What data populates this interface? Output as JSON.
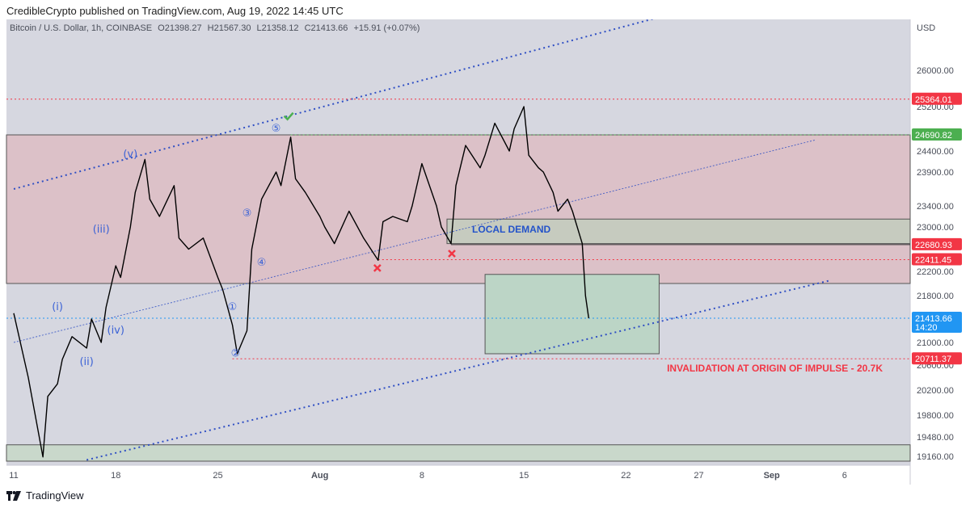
{
  "header": {
    "published": "CredibleCrypto published on TradingView.com, Aug 19, 2022 14:45 UTC"
  },
  "symbol": {
    "name": "Bitcoin / U.S. Dollar, 1h, COINBASE",
    "open": "O21398.27",
    "high": "H21567.30",
    "low": "L21358.12",
    "close": "C21413.66",
    "change": "+15.91 (+0.07%)"
  },
  "footer": {
    "brand": "TradingView"
  },
  "colors": {
    "pane": "#d6d7e0",
    "supply_zone": "#dcc1c8",
    "demand_zone": "#c6cbbf",
    "target_box": "#bcd5c6",
    "price_line": "#000000",
    "channel": "#2f4fc4",
    "red_level": "#f23645",
    "green_level": "#4caf50",
    "last_price": "#2196f3",
    "wave_label": "#3c63d6"
  },
  "chart_data": {
    "type": "line",
    "currency": "USD",
    "x_ticks": [
      "11",
      "18",
      "25",
      "Aug",
      "8",
      "15",
      "22",
      "27",
      "Sep",
      "6"
    ],
    "y_ticks": [
      26000,
      25200,
      24400,
      23900,
      23400,
      23000,
      22200,
      21800,
      21000,
      20600,
      20200,
      19800,
      19480,
      19160
    ],
    "y_range": [
      19100,
      26700
    ],
    "price_labels": [
      {
        "value": 25364.01,
        "text": "25364.01",
        "color": "red"
      },
      {
        "value": 24690.82,
        "text": "24690.82",
        "color": "green"
      },
      {
        "value": 22680.93,
        "text": "22680.93",
        "color": "red"
      },
      {
        "value": 22411.45,
        "text": "22411.45",
        "color": "red"
      },
      {
        "value": 21413.66,
        "text": "21413.66",
        "color": "blue",
        "sub": "14:20"
      },
      {
        "value": 20711.37,
        "text": "20711.37",
        "color": "red"
      }
    ],
    "annotations": {
      "local_demand": "LOCAL DEMAND",
      "invalidation": "INVALIDATION AT ORIGIN OF IMPULSE - 20.7K"
    },
    "wave_labels": [
      "(i)",
      "(ii)",
      "(iii)",
      "(iv)",
      "(v)",
      "①",
      "②",
      "③",
      "④",
      "⑤"
    ],
    "series": [
      {
        "values": [
          [
            "Jul 11",
            21500
          ],
          [
            "Jul 12",
            20400
          ],
          [
            "Jul 13",
            19150
          ],
          [
            "Jul 13",
            20100
          ],
          [
            "Jul 14",
            20300
          ],
          [
            "Jul 14",
            20700
          ],
          [
            "Jul 15",
            21100
          ],
          [
            "Jul 16",
            20900
          ],
          [
            "Jul 16",
            21400
          ],
          [
            "Jul 17",
            21000
          ],
          [
            "Jul 17",
            21600
          ],
          [
            "Jul 18",
            22300
          ],
          [
            "Jul 18",
            22100
          ],
          [
            "Jul 19",
            23000
          ],
          [
            "Jul 19",
            23600
          ],
          [
            "Jul 20",
            24200
          ],
          [
            "Jul 20",
            23500
          ],
          [
            "Jul 21",
            23200
          ],
          [
            "Jul 22",
            23700
          ],
          [
            "Jul 22",
            22800
          ],
          [
            "Jul 23",
            22600
          ],
          [
            "Jul 24",
            22800
          ],
          [
            "Jul 25",
            22100
          ],
          [
            "Jul 25",
            21900
          ],
          [
            "Jul 26",
            21300
          ],
          [
            "Jul 26",
            20800
          ],
          [
            "Jul 27",
            21200
          ],
          [
            "Jul 27",
            22600
          ],
          [
            "Jul 28",
            23500
          ],
          [
            "Jul 29",
            23900
          ],
          [
            "Jul 29",
            23700
          ],
          [
            "Jul 30",
            24650
          ],
          [
            "Jul 30",
            23800
          ],
          [
            "Jul 31",
            23600
          ],
          [
            "Aug 1",
            23200
          ],
          [
            "Aug 1",
            23000
          ],
          [
            "Aug 2",
            22700
          ],
          [
            "Aug 3",
            23300
          ],
          [
            "Aug 4",
            22800
          ],
          [
            "Aug 5",
            22400
          ],
          [
            "Aug 5",
            23100
          ],
          [
            "Aug 6",
            23200
          ],
          [
            "Aug 7",
            23100
          ],
          [
            "Aug 7",
            23400
          ],
          [
            "Aug 8",
            24100
          ],
          [
            "Aug 9",
            23400
          ],
          [
            "Aug 9",
            23000
          ],
          [
            "Aug 10",
            22700
          ],
          [
            "Aug 10",
            23700
          ],
          [
            "Aug 11",
            24500
          ],
          [
            "Aug 12",
            24000
          ],
          [
            "Aug 12",
            24300
          ],
          [
            "Aug 13",
            24900
          ],
          [
            "Aug 14",
            24400
          ],
          [
            "Aug 14",
            24800
          ],
          [
            "Aug 15",
            25200
          ],
          [
            "Aug 15",
            24300
          ],
          [
            "Aug 16",
            24000
          ],
          [
            "Aug 16",
            23900
          ],
          [
            "Aug 17",
            23600
          ],
          [
            "Aug 17",
            23300
          ],
          [
            "Aug 18",
            23500
          ],
          [
            "Aug 18",
            23300
          ],
          [
            "Aug 19",
            22700
          ],
          [
            "Aug 19",
            21800
          ],
          [
            "Aug 19",
            21413.66
          ]
        ]
      }
    ]
  }
}
